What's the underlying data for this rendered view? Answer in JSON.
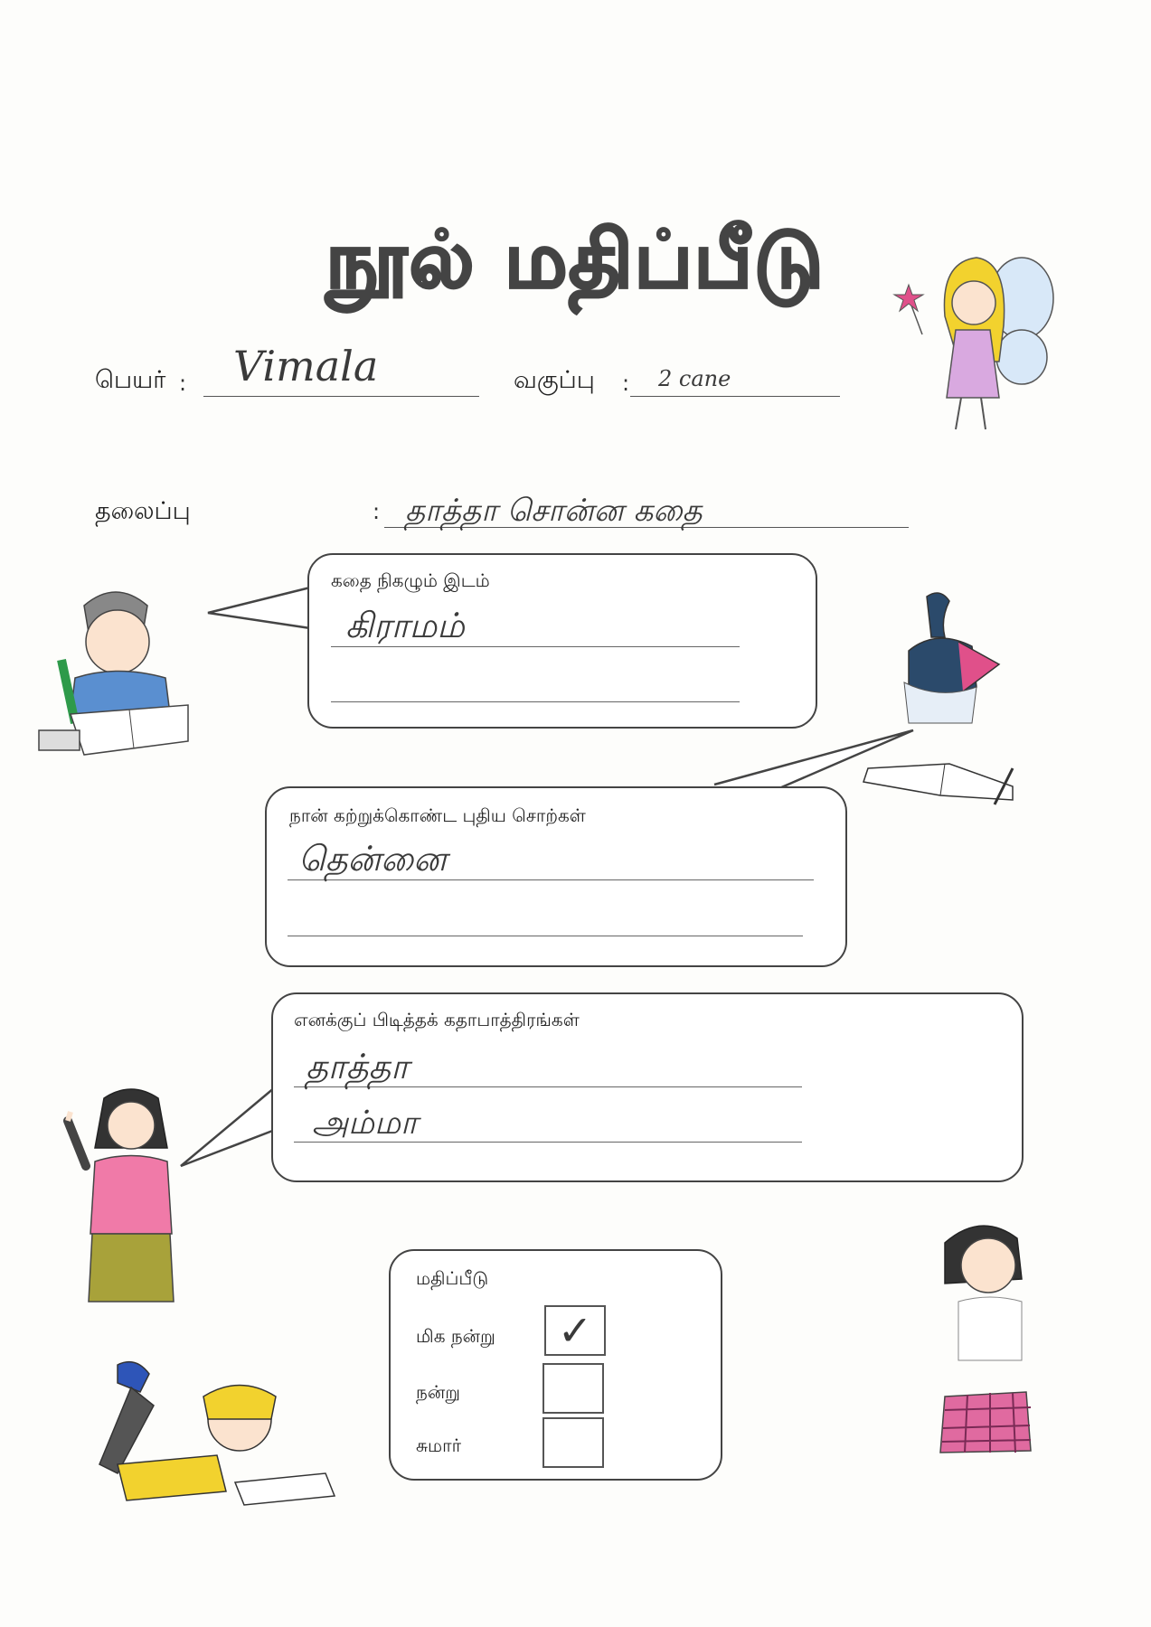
{
  "title": "நூல் மதிப்பீடு",
  "fields": {
    "name_label": "பெயர்",
    "name_value": "Vimala",
    "class_label": "வகுப்பு",
    "class_value": "2 cane",
    "topic_label": "தலைப்பு",
    "topic_value": "தாத்தா சொன்ன கதை"
  },
  "sections": {
    "setting": {
      "label": "கதை நிகழும் இடம்",
      "answers": [
        "கிராமம்",
        ""
      ]
    },
    "new_words": {
      "label": "நான் கற்றுக்கொண்ட புதிய சொற்கள்",
      "answers": [
        "தென்னை",
        ""
      ]
    },
    "characters": {
      "label": "எனக்குப் பிடித்தக் கதாபாத்திரங்கள்",
      "answers": [
        "தாத்தா",
        "அம்மா"
      ]
    }
  },
  "rating": {
    "label": "மதிப்பீடு",
    "options": [
      {
        "label": "மிக நன்று",
        "checked": true,
        "mark": "✓"
      },
      {
        "label": "நன்று",
        "checked": false,
        "mark": ""
      },
      {
        "label": "சுமார்",
        "checked": false,
        "mark": ""
      }
    ]
  },
  "colors": {
    "ink": "#444444",
    "pink": "#e0508a",
    "blue": "#5a8fd0",
    "yellow": "#f2d22e"
  }
}
